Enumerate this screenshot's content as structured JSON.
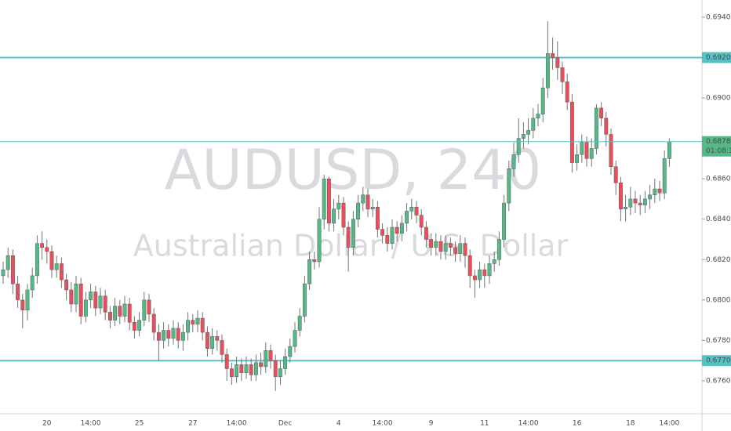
{
  "chart_data": {
    "type": "candlestick",
    "watermark_title": "AUDUSD, 240",
    "watermark_subtitle": "Australian Dollar / U.S. Dollar",
    "up_color": "#53b987",
    "down_color": "#eb4d5c",
    "level_color": "#56c2c4",
    "categories": [
      null,
      null,
      null,
      null,
      null,
      null,
      null,
      null,
      null,
      "20",
      null,
      null,
      null,
      null,
      null,
      null,
      null,
      null,
      "14:00",
      null,
      null,
      null,
      null,
      null,
      null,
      null,
      null,
      null,
      "25",
      null,
      null,
      null,
      null,
      null,
      null,
      null,
      null,
      null,
      null,
      "27",
      null,
      null,
      null,
      null,
      null,
      null,
      null,
      null,
      "14:00",
      null,
      null,
      null,
      null,
      null,
      null,
      null,
      null,
      null,
      "Dec",
      null,
      null,
      null,
      null,
      null,
      null,
      null,
      null,
      null,
      null,
      "4",
      null,
      null,
      null,
      null,
      null,
      null,
      null,
      null,
      "14:00",
      null,
      null,
      null,
      null,
      null,
      null,
      null,
      null,
      null,
      "9",
      null,
      null,
      null,
      null,
      null,
      null,
      null,
      null,
      null,
      null,
      "11",
      null,
      null,
      null,
      null,
      null,
      null,
      null,
      null,
      "14:00",
      null,
      null,
      null,
      null,
      null,
      null,
      null,
      null,
      null,
      "16",
      null,
      null,
      null,
      null,
      null,
      null,
      null,
      null,
      null,
      null,
      "18",
      null,
      null,
      null,
      null,
      null,
      null,
      null,
      "14:00"
    ],
    "open": [
      0.6812,
      0.6815,
      0.6822,
      0.6808,
      0.68,
      0.6795,
      0.6805,
      0.6812,
      0.6828,
      0.6826,
      0.6824,
      0.6815,
      0.6818,
      0.681,
      0.6805,
      0.6798,
      0.6808,
      0.6792,
      0.68,
      0.6804,
      0.6796,
      0.6802,
      0.6794,
      0.679,
      0.6797,
      0.6792,
      0.6798,
      0.6789,
      0.6785,
      0.679,
      0.68,
      0.6793,
      0.6784,
      0.678,
      0.6785,
      0.6781,
      0.6786,
      0.678,
      0.6784,
      0.679,
      0.6788,
      0.6791,
      0.6784,
      0.6776,
      0.6782,
      0.678,
      0.6773,
      0.6766,
      0.6762,
      0.6768,
      0.6764,
      0.6768,
      0.6763,
      0.6769,
      0.6767,
      0.6775,
      0.677,
      0.6762,
      0.6766,
      0.6772,
      0.6777,
      0.6785,
      0.6792,
      0.6808,
      0.682,
      0.6819,
      0.684,
      0.686,
      0.6838,
      0.6845,
      0.6848,
      0.6836,
      0.6826,
      0.684,
      0.6848,
      0.6852,
      0.6845,
      0.6846,
      0.6835,
      0.6832,
      0.6828,
      0.6836,
      0.6833,
      0.6838,
      0.6844,
      0.6846,
      0.6842,
      0.6836,
      0.683,
      0.6826,
      0.6829,
      0.6824,
      0.6828,
      0.6826,
      0.6823,
      0.6828,
      0.6822,
      0.6812,
      0.681,
      0.6815,
      0.6812,
      0.6818,
      0.682,
      0.683,
      0.6848,
      0.6865,
      0.6872,
      0.688,
      0.6882,
      0.6884,
      0.689,
      0.6892,
      0.6905,
      0.6922,
      0.692,
      0.6915,
      0.6908,
      0.6898,
      0.6868,
      0.6872,
      0.6878,
      0.687,
      0.6875,
      0.6895,
      0.689,
      0.6882,
      0.6866,
      0.6858,
      0.6845,
      0.6846,
      0.685,
      0.6848,
      0.6847,
      0.685,
      0.6852,
      0.6855,
      0.6853,
      0.687
    ],
    "high": [
      0.6819,
      0.6826,
      0.6825,
      0.6812,
      0.6803,
      0.6808,
      0.6816,
      0.6832,
      0.6834,
      0.683,
      0.6827,
      0.6822,
      0.6821,
      0.6813,
      0.6809,
      0.6812,
      0.6811,
      0.6804,
      0.6808,
      0.6807,
      0.6806,
      0.6805,
      0.6797,
      0.6801,
      0.68,
      0.6802,
      0.6801,
      0.6792,
      0.6794,
      0.6804,
      0.6803,
      0.6796,
      0.6788,
      0.6789,
      0.6788,
      0.679,
      0.6789,
      0.6788,
      0.6794,
      0.6793,
      0.6795,
      0.6794,
      0.6787,
      0.6786,
      0.6785,
      0.6783,
      0.6776,
      0.6769,
      0.6772,
      0.6771,
      0.6772,
      0.6771,
      0.6773,
      0.6774,
      0.6779,
      0.6778,
      0.6773,
      0.677,
      0.6776,
      0.6781,
      0.6789,
      0.6796,
      0.6812,
      0.6824,
      0.6824,
      0.6846,
      0.6862,
      0.6861,
      0.685,
      0.6852,
      0.6851,
      0.6839,
      0.6844,
      0.6852,
      0.6856,
      0.6855,
      0.685,
      0.6849,
      0.6838,
      0.6836,
      0.684,
      0.6839,
      0.6842,
      0.6848,
      0.685,
      0.6849,
      0.6845,
      0.6839,
      0.6833,
      0.6833,
      0.6832,
      0.6832,
      0.6831,
      0.6829,
      0.6832,
      0.6831,
      0.6825,
      0.6815,
      0.6819,
      0.6818,
      0.6822,
      0.6824,
      0.6834,
      0.6852,
      0.6869,
      0.6878,
      0.689,
      0.6888,
      0.689,
      0.6895,
      0.6897,
      0.691,
      0.6938,
      0.693,
      0.6928,
      0.6918,
      0.6912,
      0.6902,
      0.6877,
      0.6882,
      0.6881,
      0.688,
      0.6897,
      0.6898,
      0.6893,
      0.6885,
      0.6869,
      0.6861,
      0.6852,
      0.6856,
      0.6854,
      0.6852,
      0.6854,
      0.6857,
      0.686,
      0.6859,
      0.6874,
      0.688
    ],
    "low": [
      0.6808,
      0.6811,
      0.6803,
      0.6796,
      0.6786,
      0.679,
      0.6801,
      0.6808,
      0.682,
      0.6818,
      0.6811,
      0.6811,
      0.6806,
      0.68,
      0.6794,
      0.6794,
      0.6788,
      0.6789,
      0.6796,
      0.6792,
      0.6793,
      0.679,
      0.6786,
      0.6787,
      0.6788,
      0.6789,
      0.6785,
      0.6781,
      0.6782,
      0.6787,
      0.6789,
      0.678,
      0.677,
      0.6776,
      0.6777,
      0.6778,
      0.6776,
      0.6775,
      0.678,
      0.6784,
      0.6784,
      0.678,
      0.6772,
      0.6773,
      0.6775,
      0.6769,
      0.676,
      0.6758,
      0.6759,
      0.676,
      0.6761,
      0.676,
      0.676,
      0.6763,
      0.6764,
      0.6766,
      0.6755,
      0.6758,
      0.6763,
      0.6769,
      0.6774,
      0.6782,
      0.6789,
      0.6805,
      0.6815,
      0.6816,
      0.6835,
      0.6834,
      0.6834,
      0.684,
      0.6832,
      0.6814,
      0.6822,
      0.6836,
      0.6844,
      0.6841,
      0.6841,
      0.6831,
      0.6828,
      0.6824,
      0.6825,
      0.6829,
      0.6829,
      0.6834,
      0.684,
      0.6838,
      0.6832,
      0.6826,
      0.6822,
      0.6822,
      0.682,
      0.682,
      0.6822,
      0.6819,
      0.6819,
      0.6816,
      0.6806,
      0.6801,
      0.6806,
      0.6806,
      0.6808,
      0.6814,
      0.6817,
      0.6826,
      0.6844,
      0.6861,
      0.6868,
      0.6875,
      0.6877,
      0.688,
      0.6886,
      0.6888,
      0.69,
      0.6914,
      0.6909,
      0.6902,
      0.6894,
      0.6863,
      0.6864,
      0.6868,
      0.6866,
      0.6866,
      0.6872,
      0.6886,
      0.6876,
      0.6862,
      0.6852,
      0.6839,
      0.6839,
      0.6842,
      0.6843,
      0.6842,
      0.6843,
      0.6845,
      0.6848,
      0.6849,
      0.685,
      0.6866
    ],
    "close": [
      0.6815,
      0.6822,
      0.6808,
      0.68,
      0.6795,
      0.6805,
      0.6812,
      0.6828,
      0.6826,
      0.6824,
      0.6815,
      0.6818,
      0.681,
      0.6805,
      0.6798,
      0.6808,
      0.6792,
      0.68,
      0.6804,
      0.6796,
      0.6802,
      0.6794,
      0.679,
      0.6797,
      0.6792,
      0.6798,
      0.6789,
      0.6785,
      0.679,
      0.68,
      0.6793,
      0.6784,
      0.678,
      0.6785,
      0.6781,
      0.6786,
      0.678,
      0.6784,
      0.679,
      0.6788,
      0.6791,
      0.6784,
      0.6776,
      0.6782,
      0.678,
      0.6773,
      0.6766,
      0.6762,
      0.6768,
      0.6764,
      0.6768,
      0.6763,
      0.6769,
      0.6767,
      0.6775,
      0.677,
      0.6762,
      0.6766,
      0.6772,
      0.6777,
      0.6785,
      0.6792,
      0.6808,
      0.682,
      0.6819,
      0.684,
      0.686,
      0.6838,
      0.6845,
      0.6848,
      0.6836,
      0.6826,
      0.684,
      0.6848,
      0.6852,
      0.6845,
      0.6846,
      0.6835,
      0.6832,
      0.6828,
      0.6836,
      0.6833,
      0.6838,
      0.6844,
      0.6846,
      0.6842,
      0.6836,
      0.683,
      0.6826,
      0.6829,
      0.6824,
      0.6828,
      0.6826,
      0.6823,
      0.6828,
      0.6822,
      0.6812,
      0.681,
      0.6815,
      0.6812,
      0.6818,
      0.682,
      0.683,
      0.6848,
      0.6865,
      0.6872,
      0.688,
      0.6882,
      0.6884,
      0.689,
      0.6892,
      0.6905,
      0.6922,
      0.692,
      0.6915,
      0.6908,
      0.6898,
      0.6868,
      0.6872,
      0.6878,
      0.687,
      0.6875,
      0.6895,
      0.689,
      0.6882,
      0.6866,
      0.6858,
      0.6845,
      0.6846,
      0.685,
      0.6848,
      0.6847,
      0.685,
      0.6852,
      0.6855,
      0.6853,
      0.687,
      0.68784
    ],
    "ylim": [
      0.67437,
      0.69485
    ],
    "yticks": [
      {
        "value": 0.676,
        "label": "0.67600"
      },
      {
        "value": 0.678,
        "label": "0.67800"
      },
      {
        "value": 0.68,
        "label": "0.68000"
      },
      {
        "value": 0.682,
        "label": "0.68200"
      },
      {
        "value": 0.684,
        "label": "0.68400"
      },
      {
        "value": 0.686,
        "label": "0.68600"
      },
      {
        "value": 0.69,
        "label": "0.69000"
      },
      {
        "value": 0.694,
        "label": "0.69400"
      }
    ],
    "levels": [
      {
        "value": 0.692,
        "label": "0.69200"
      },
      {
        "value": 0.677,
        "label": "0.67700"
      }
    ],
    "last_value_label": "0.68784",
    "countdown": "01:08:12"
  }
}
